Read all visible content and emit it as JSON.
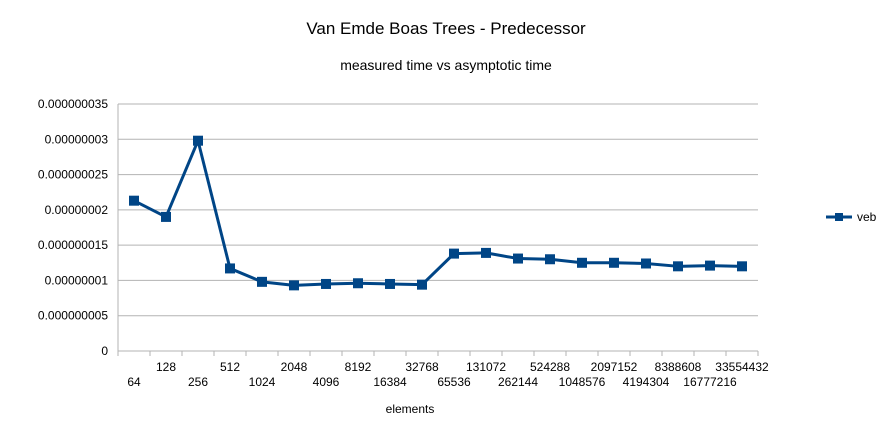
{
  "chart_data": {
    "type": "line",
    "title": "Van Emde Boas Trees - Predecessor",
    "subtitle": "measured time vs asymptotic time",
    "xlabel": "elements",
    "ylabel": "",
    "categories": [
      "64",
      "128",
      "256",
      "512",
      "1024",
      "2048",
      "4096",
      "8192",
      "16384",
      "32768",
      "65536",
      "131072",
      "262144",
      "524288",
      "1048576",
      "2097152",
      "4194304",
      "8388608",
      "16777216",
      "33554432"
    ],
    "y_ticks": [
      "0",
      "0.000000005",
      "0.00000001",
      "0.000000015",
      "0.00000002",
      "0.000000025",
      "0.00000003",
      "0.000000035"
    ],
    "ylim": [
      0,
      3.5e-08
    ],
    "grid": true,
    "legend_position": "right",
    "series": [
      {
        "name": "veb",
        "color": "#004586",
        "marker": "square",
        "values": [
          2.13e-08,
          1.9e-08,
          2.98e-08,
          1.17e-08,
          9.8e-09,
          9.3e-09,
          9.5e-09,
          9.6e-09,
          9.5e-09,
          9.4e-09,
          1.38e-08,
          1.39e-08,
          1.31e-08,
          1.3e-08,
          1.25e-08,
          1.25e-08,
          1.24e-08,
          1.2e-08,
          1.21e-08,
          1.2e-08
        ]
      }
    ]
  }
}
